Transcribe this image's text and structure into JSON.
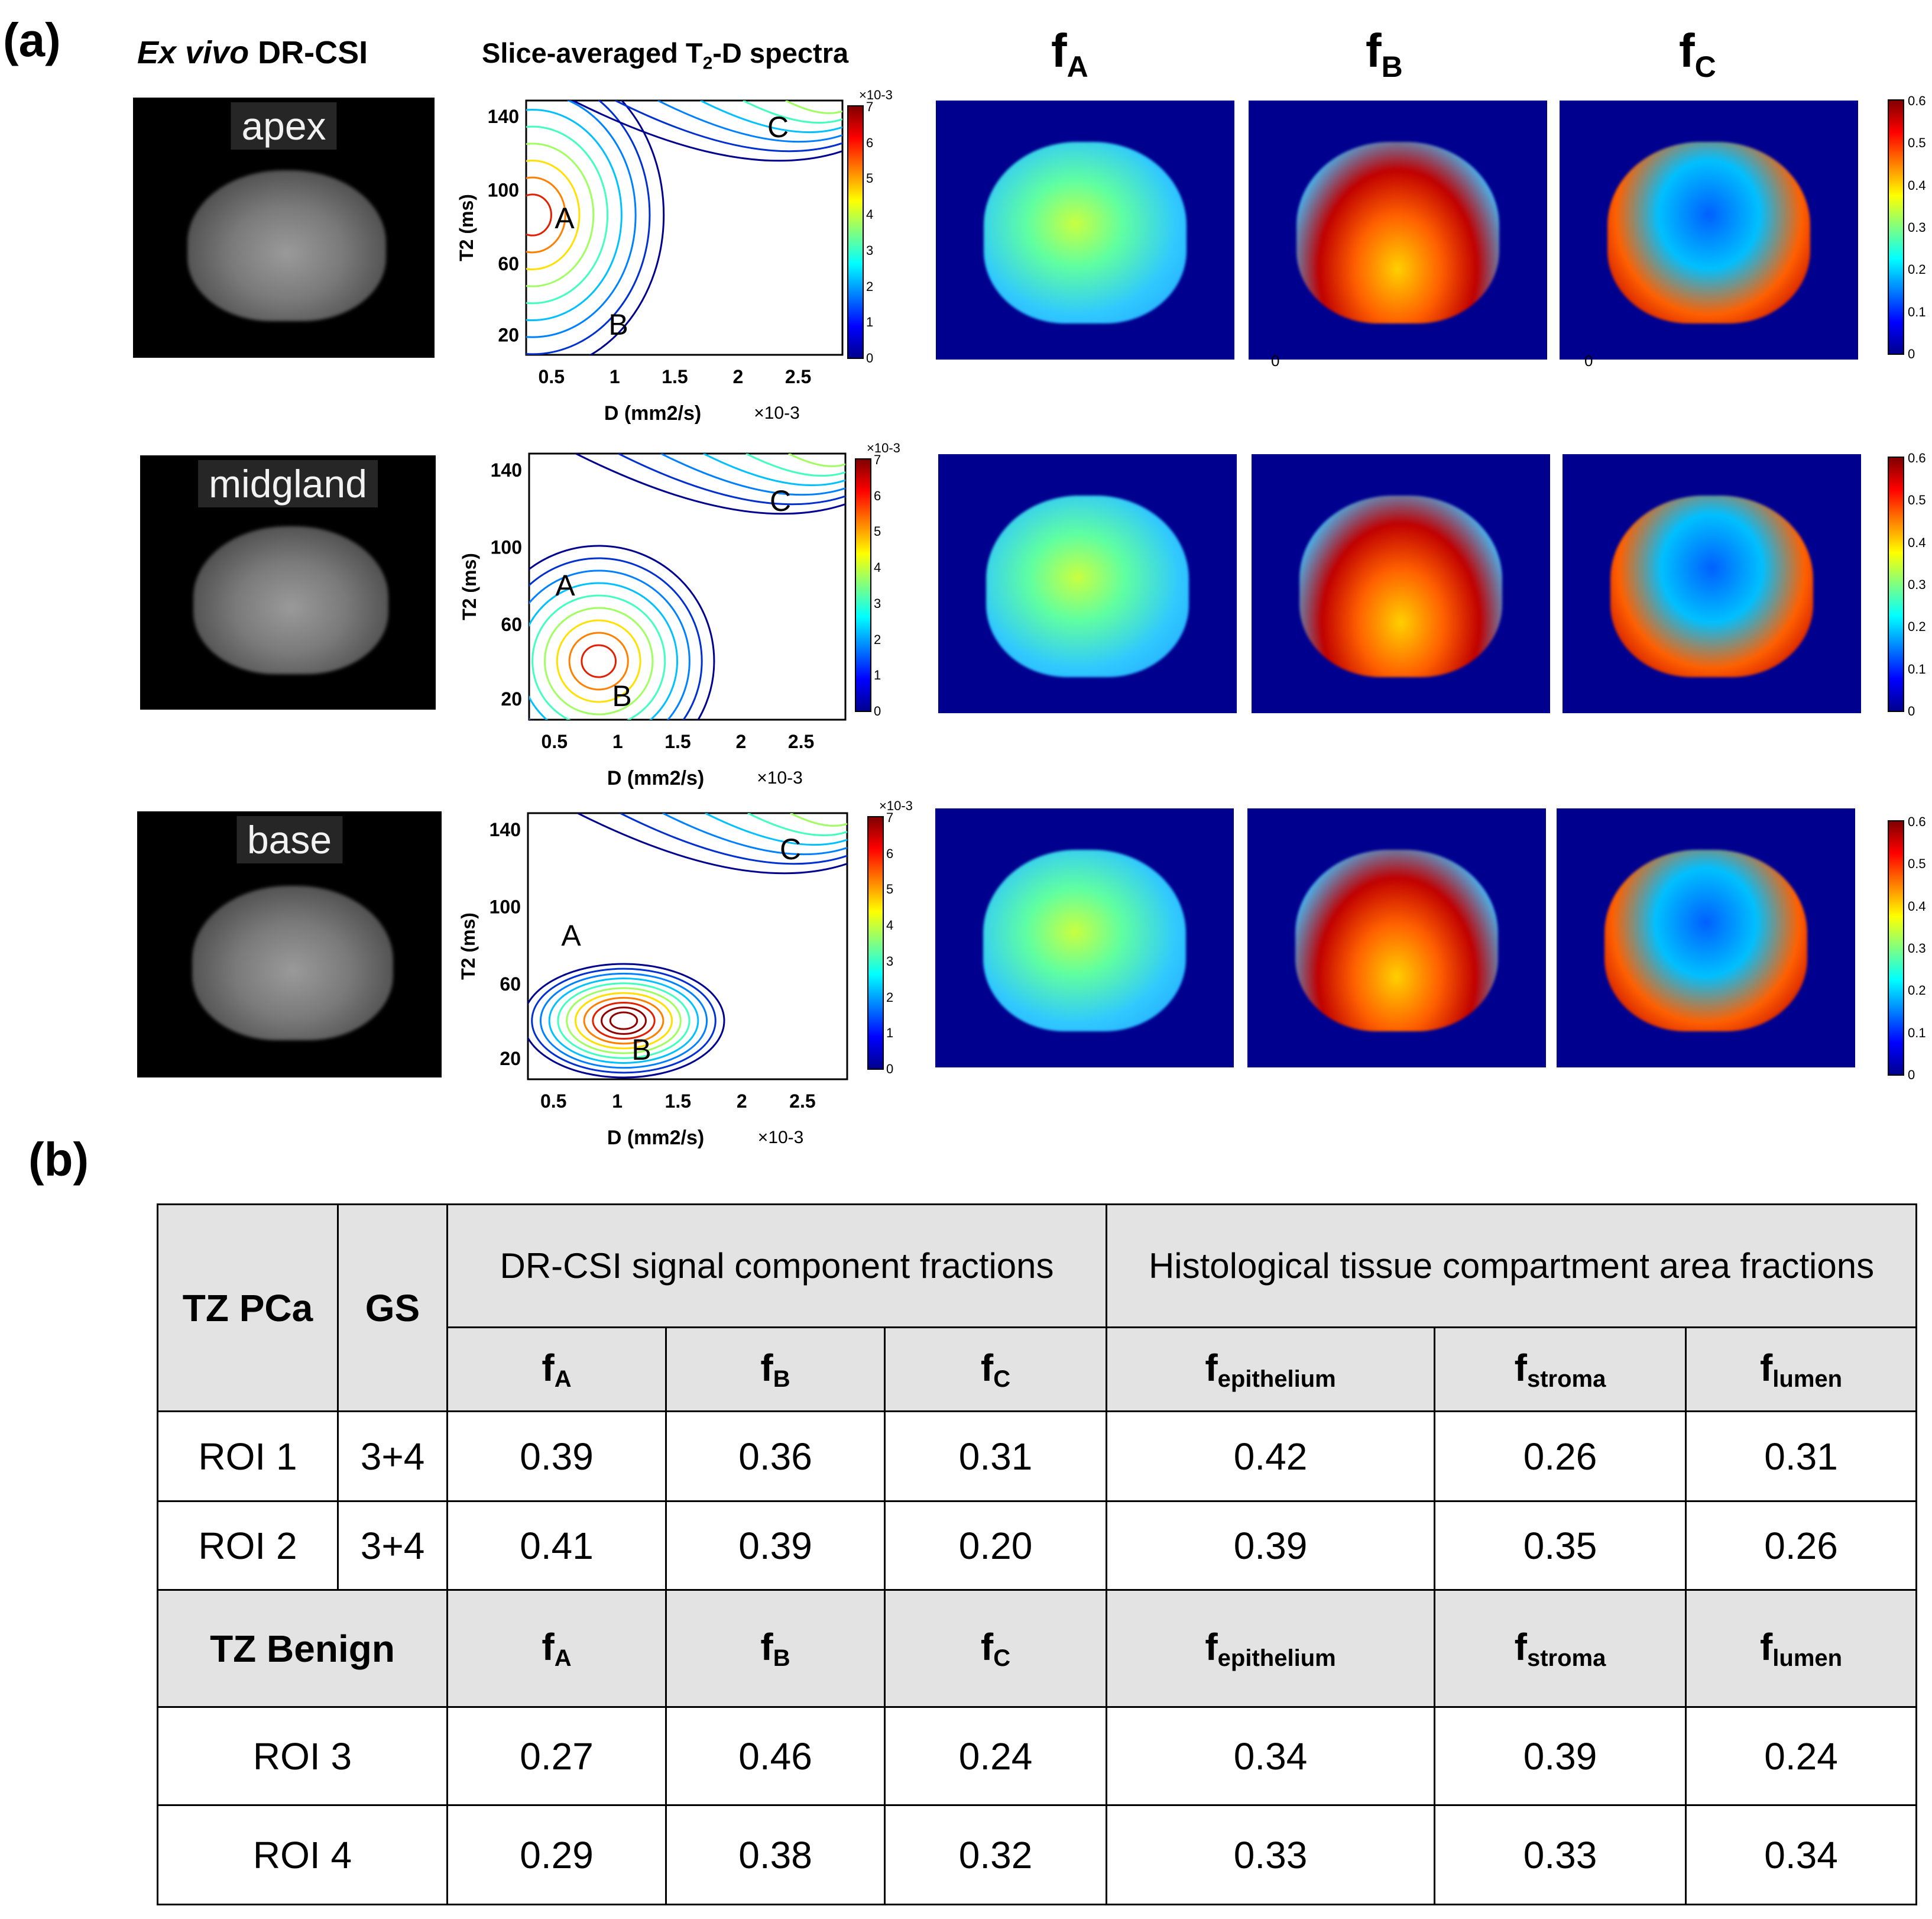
{
  "panel_a": {
    "label": "(a)",
    "col_mri_title_italic": "Ex vivo",
    "col_mri_title_rest": " DR-CSI",
    "col_spectra_title": "Slice-averaged T",
    "col_spectra_title_sub": "2",
    "col_spectra_title_rest": "-D spectra",
    "fmap_headers": [
      {
        "f": "f",
        "sub": "A"
      },
      {
        "f": "f",
        "sub": "B"
      },
      {
        "f": "f",
        "sub": "C"
      }
    ],
    "rows": [
      {
        "slice": "apex"
      },
      {
        "slice": "midgland"
      },
      {
        "slice": "base"
      }
    ],
    "spectrum_axes": {
      "ylabel": "T",
      "ylabel_sub": "2",
      "ylabel_unit": " (ms)",
      "xlabel": "D (mm",
      "xlabel_sup": "2",
      "xlabel_unit": "/s)",
      "x_multiplier": "×10",
      "x_multiplier_exp": "-3",
      "y_ticks": [
        "140",
        "100",
        "60",
        "20"
      ],
      "x_ticks": [
        "0.5",
        "1",
        "1.5",
        "2",
        "2.5"
      ],
      "peak_labels": [
        "A",
        "B",
        "C"
      ],
      "cbar_multiplier": "×10",
      "cbar_multiplier_exp": "-3",
      "cbar_ticks": [
        "7",
        "6",
        "5",
        "4",
        "3",
        "2",
        "1",
        "0"
      ]
    },
    "fmap_colorbar_ticks": [
      "0.6",
      "0.5",
      "0.4",
      "0.3",
      "0.2",
      "0.1",
      "0"
    ],
    "stray_ticks": [
      "0",
      "0"
    ]
  },
  "panel_b": {
    "label": "(b)",
    "table": {
      "head_group": "TZ PCa",
      "head_gs": "GS",
      "group_drcsi": "DR-CSI signal component fractions",
      "group_histo": "Histological tissue compartment area fractions",
      "cols": [
        {
          "f": "f",
          "sub": "A"
        },
        {
          "f": "f",
          "sub": "B"
        },
        {
          "f": "f",
          "sub": "C"
        },
        {
          "f": "f",
          "sub": "epithelium"
        },
        {
          "f": "f",
          "sub": "stroma"
        },
        {
          "f": "f",
          "sub": "lumen"
        }
      ],
      "pca_rows": [
        {
          "roi": "ROI 1",
          "gs": "3+4",
          "values": [
            "0.39",
            "0.36",
            "0.31",
            "0.42",
            "0.26",
            "0.31"
          ]
        },
        {
          "roi": "ROI 2",
          "gs": "3+4",
          "values": [
            "0.41",
            "0.39",
            "0.20",
            "0.39",
            "0.35",
            "0.26"
          ]
        }
      ],
      "benign_head": "TZ Benign",
      "benign_rows": [
        {
          "roi": "ROI 3",
          "values": [
            "0.27",
            "0.46",
            "0.24",
            "0.34",
            "0.39",
            "0.24"
          ]
        },
        {
          "roi": "ROI 4",
          "values": [
            "0.29",
            "0.38",
            "0.32",
            "0.33",
            "0.33",
            "0.34"
          ]
        }
      ]
    }
  }
}
